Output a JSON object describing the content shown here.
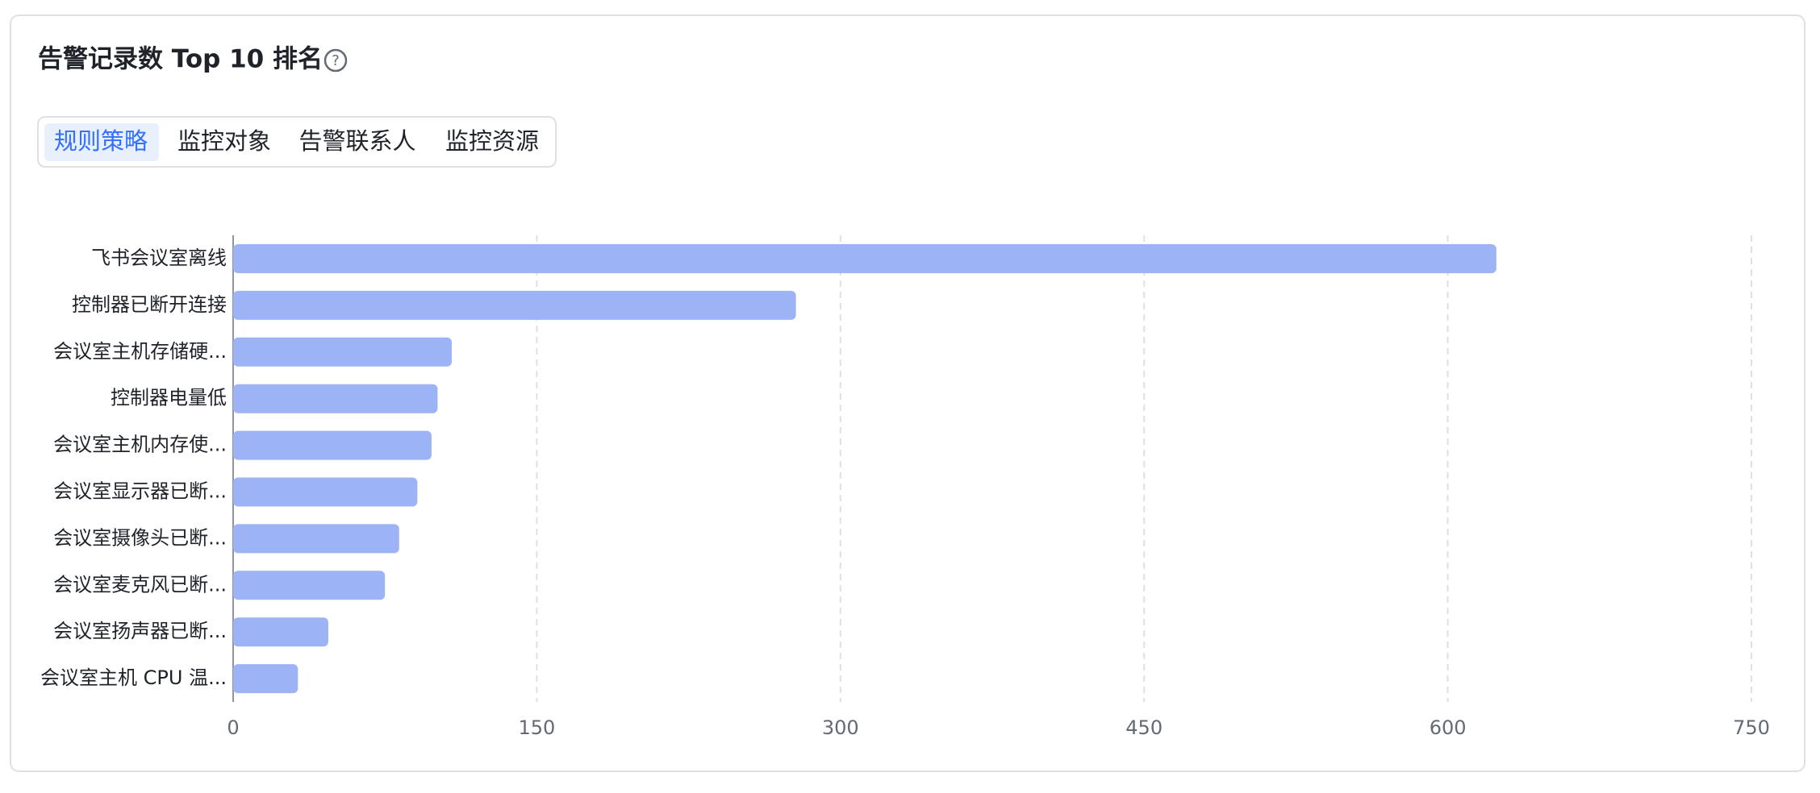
{
  "chart_data": {
    "type": "hbar",
    "title": "告警记录数 Top 10 排名",
    "tabs": [
      "规则策略",
      "监控对象",
      "告警联系人",
      "监控资源"
    ],
    "categories": [
      "飞书会议室离线",
      "控制器已断开连接",
      "会议室主机存储硬...",
      "控制器电量低",
      "会议室主机内存使...",
      "会议室显示器已断...",
      "会议室摄像头已断...",
      "会议室麦克风已断...",
      "会议室扬声器已断...",
      "会议室主机 CPU 温..."
    ],
    "values": [
      624,
      278,
      108,
      101,
      98,
      91,
      82,
      75,
      47,
      32
    ],
    "color": "#9cb3f6",
    "xlim": [
      0,
      750
    ],
    "xticks": [
      0,
      150,
      300,
      450,
      600,
      750
    ],
    "grid": true
  }
}
